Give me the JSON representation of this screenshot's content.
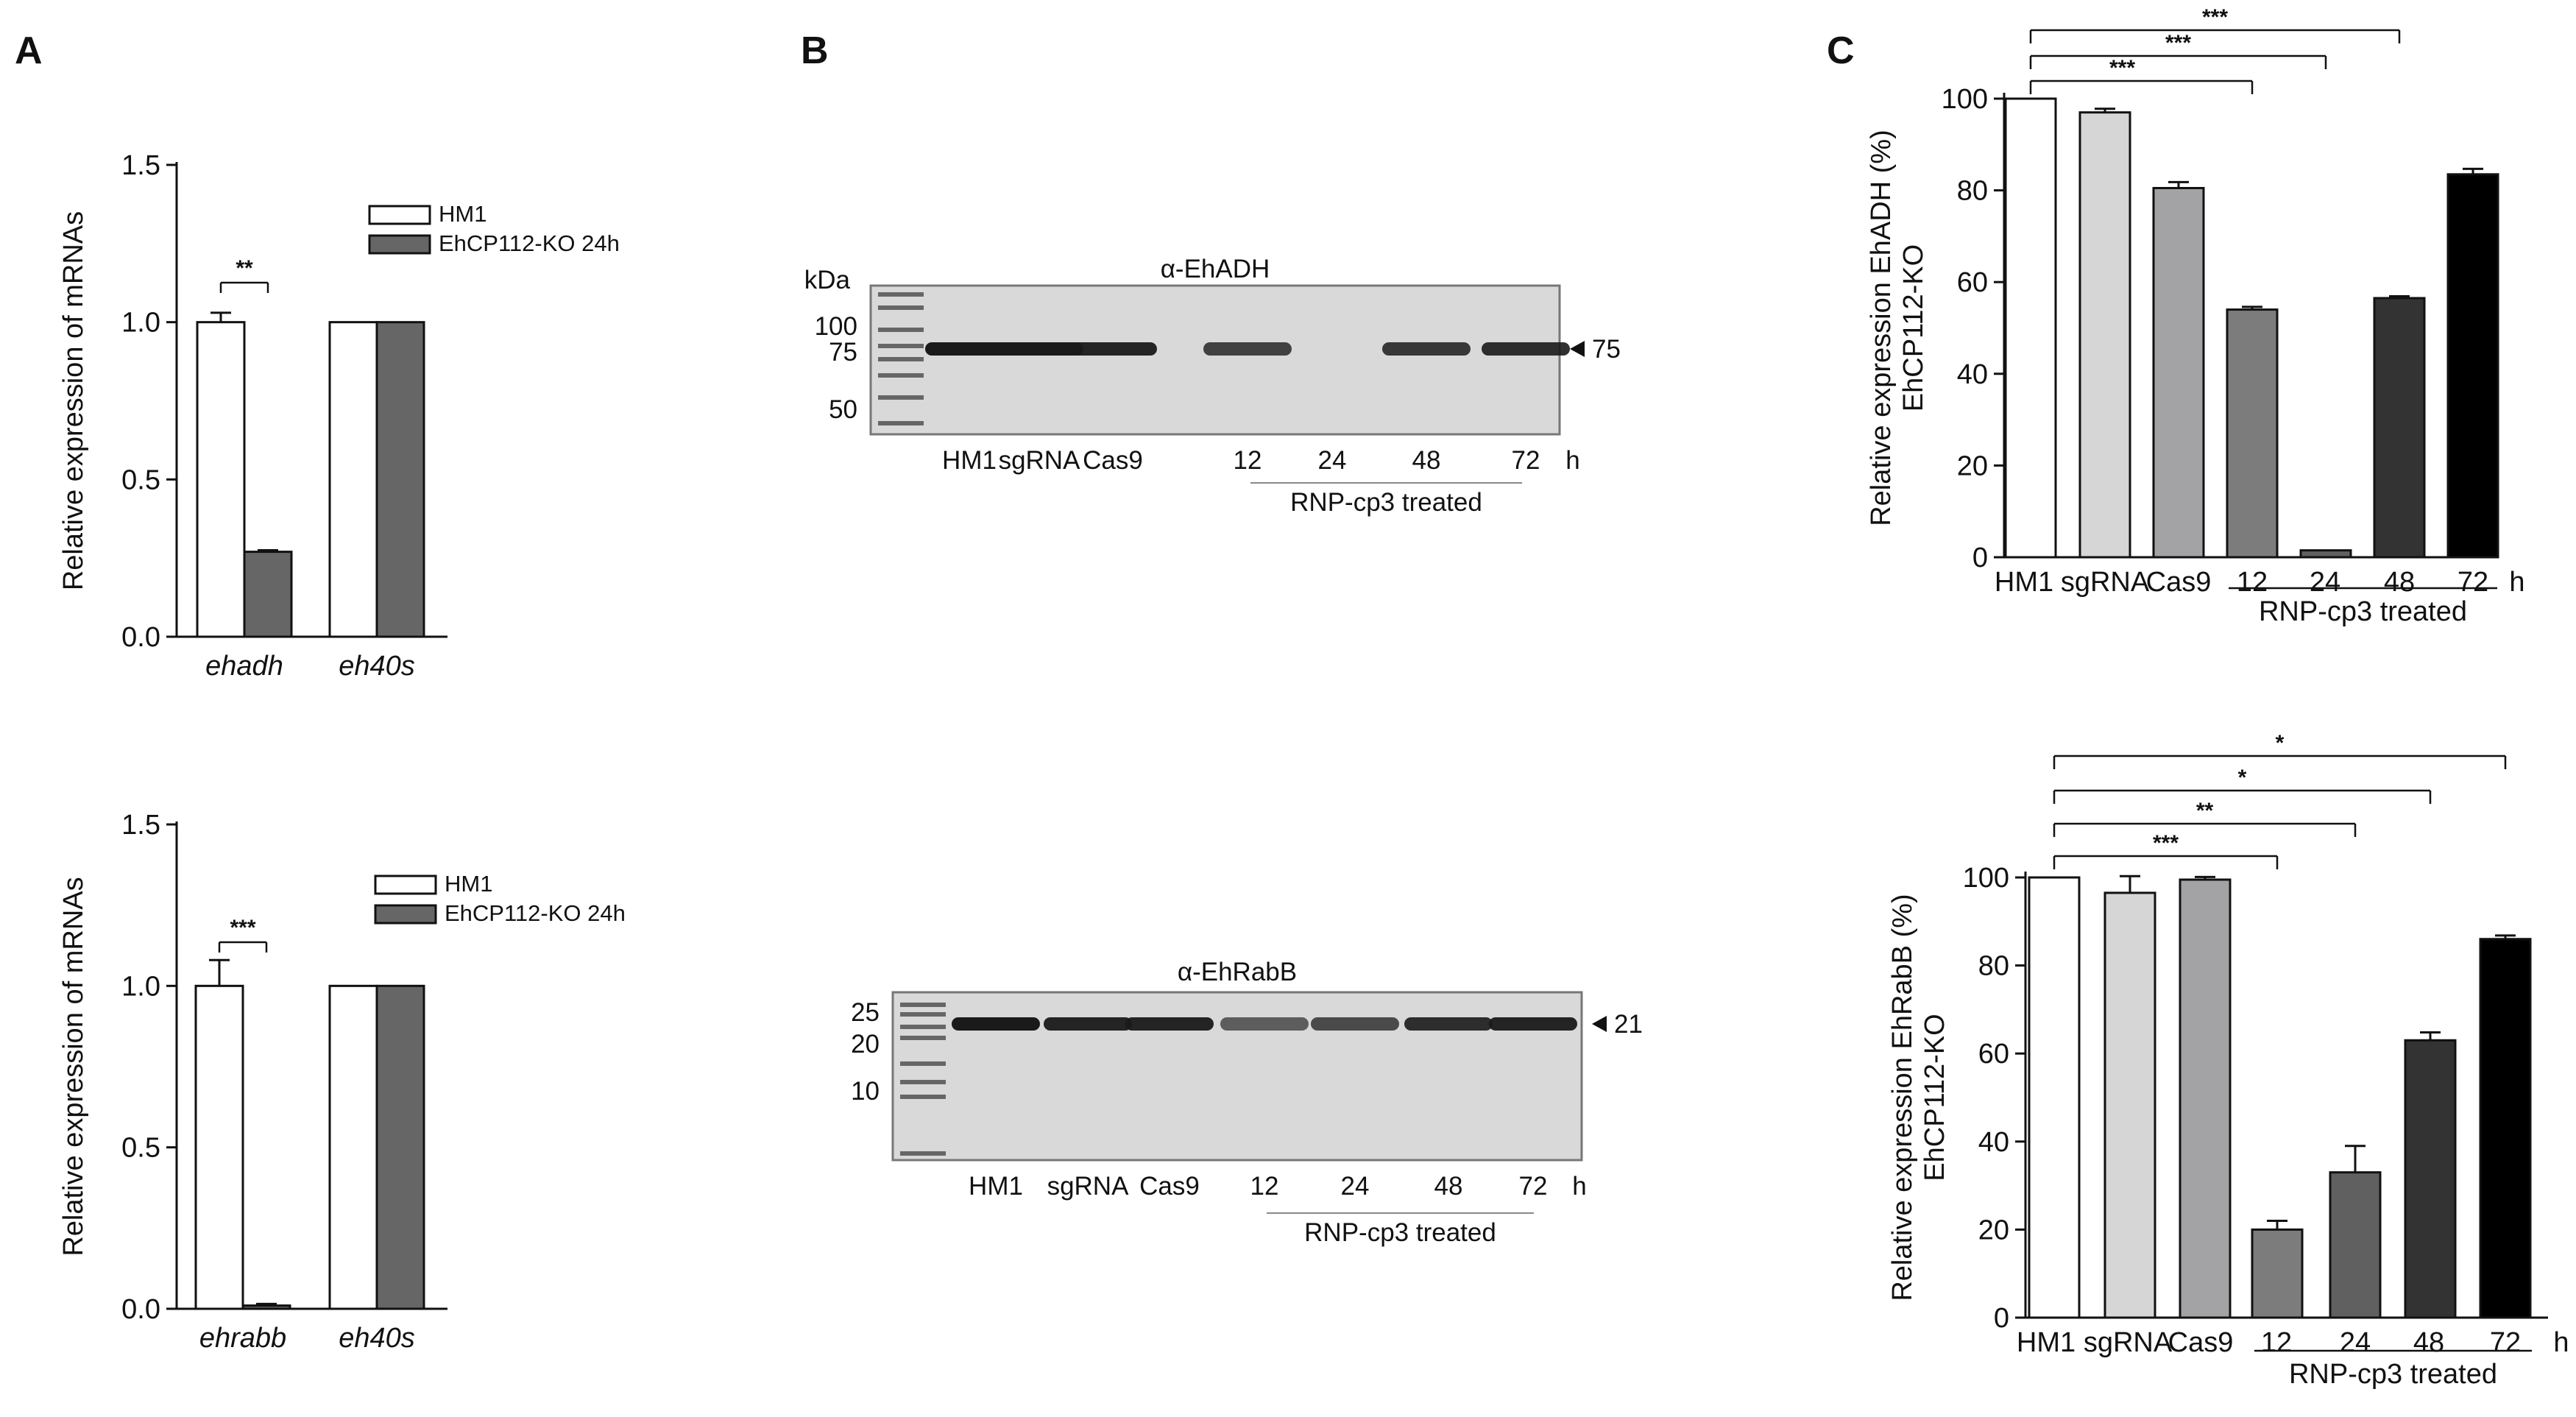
{
  "panels": {
    "A": "A",
    "B": "B",
    "C": "C"
  },
  "colors": {
    "white_bar": "#ffffff",
    "ko_bar": "#666666",
    "grey_light": "#d6d6d6",
    "grey_mid": "#a3a3a6",
    "grey_12": "#7c7c7c",
    "grey_24": "#606060",
    "dark_48": "#333333",
    "black_72": "#000000",
    "gel_bg": "#d9d9d9",
    "band": "#1a1a1a"
  },
  "chart_data": [
    {
      "id": "A-top",
      "type": "bar",
      "categories": [
        "ehadh",
        "eh40s"
      ],
      "series": [
        {
          "name": "HM1",
          "values": [
            1.0,
            1.0
          ],
          "errors": [
            0.03,
            0
          ]
        },
        {
          "name": "EhCP112-KO 24h",
          "values": [
            0.27,
            1.0
          ],
          "errors": [
            0.005,
            0
          ]
        }
      ],
      "ylabel": "Relative expression of mRNAs",
      "ylim": [
        0,
        1.5
      ],
      "yticks": [
        "0.0",
        "0.5",
        "1.0",
        "1.5"
      ],
      "significance": [
        "**"
      ]
    },
    {
      "id": "A-bottom",
      "type": "bar",
      "categories": [
        "ehrabb",
        "eh40s"
      ],
      "series": [
        {
          "name": "HM1",
          "values": [
            1.0,
            1.0
          ],
          "errors": [
            0.08,
            0
          ]
        },
        {
          "name": "EhCP112-KO 24h",
          "values": [
            0.01,
            1.0
          ],
          "errors": [
            0.005,
            0
          ]
        }
      ],
      "ylabel": "Relative expression of mRNAs",
      "ylim": [
        0,
        1.5
      ],
      "yticks": [
        "0.0",
        "0.5",
        "1.0",
        "1.5"
      ],
      "significance": [
        "***"
      ]
    },
    {
      "id": "C-top",
      "type": "bar",
      "categories": [
        "HM1",
        "sgRNA",
        "Cas9",
        "12",
        "24",
        "48",
        "72"
      ],
      "values": [
        100,
        97,
        80.5,
        54,
        1.5,
        56.5,
        83.5
      ],
      "errors": [
        0,
        0.8,
        1.3,
        0.6,
        0,
        0.4,
        1.2
      ],
      "unit_label": "h",
      "group_label": "RNP-cp3 treated",
      "ylabel": "Relative expression EhADH (%)",
      "ylabel2": "EhCP112-KO",
      "ylim": [
        0,
        100
      ],
      "yticks": [
        "0",
        "20",
        "40",
        "60",
        "80",
        "100"
      ],
      "significance": [
        "***",
        "***",
        "***"
      ]
    },
    {
      "id": "C-bottom",
      "type": "bar",
      "categories": [
        "HM1",
        "sgRNA",
        "Cas9",
        "12",
        "24",
        "48",
        "72"
      ],
      "values": [
        100,
        96.5,
        99.5,
        20,
        33,
        63,
        86
      ],
      "errors": [
        0,
        3.8,
        0.6,
        2.0,
        6.0,
        1.8,
        0.8
      ],
      "unit_label": "h",
      "group_label": "RNP-cp3 treated",
      "ylabel": "Relative expression EhRabB (%)",
      "ylabel2": "EhCP112-KO",
      "ylim": [
        0,
        100
      ],
      "yticks": [
        "0",
        "20",
        "40",
        "60",
        "80",
        "100"
      ],
      "significance": [
        "*",
        "*",
        "**",
        "***"
      ]
    }
  ],
  "blots": [
    {
      "antibody": "α-EhADH",
      "unit": "kDa",
      "markers": [
        "100",
        "75",
        "50"
      ],
      "lanes": [
        "HM1",
        "sgRNA",
        "Cas9",
        "12",
        "24",
        "48",
        "72"
      ],
      "hour": "h",
      "group_label": "RNP-cp3 treated",
      "band_size": "75",
      "intensity": [
        1,
        1,
        0.95,
        0.8,
        0,
        0.85,
        0.9
      ]
    },
    {
      "antibody": "α-EhRabB",
      "markers": [
        "25",
        "20",
        "10"
      ],
      "lanes": [
        "HM1",
        "sgRNA",
        "Cas9",
        "12",
        "24",
        "48",
        "72"
      ],
      "hour": "h",
      "group_label": "RNP-cp3 treated",
      "band_size": "21",
      "intensity": [
        1,
        0.95,
        0.95,
        0.65,
        0.75,
        0.9,
        0.95
      ]
    }
  ]
}
